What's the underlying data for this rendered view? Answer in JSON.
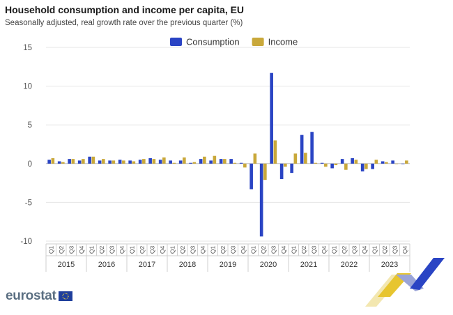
{
  "chart_data": {
    "type": "bar",
    "title": "Household consumption and income per capita, EU",
    "subtitle": "Seasonally adjusted, real growth rate over the previous quarter (%)",
    "ylim": [
      -10,
      15
    ],
    "yticks": [
      15,
      10,
      5,
      0,
      -5,
      -10
    ],
    "quarters": [
      "Q1",
      "Q2",
      "Q3",
      "Q4"
    ],
    "years": [
      "2015",
      "2016",
      "2017",
      "2018",
      "2019",
      "2020",
      "2021",
      "2022",
      "2023"
    ],
    "legend_position": "top-center",
    "series": [
      {
        "name": "Consumption",
        "color": "#2a44c4",
        "values": [
          0.5,
          0.3,
          0.6,
          0.4,
          0.9,
          0.4,
          0.4,
          0.5,
          0.4,
          0.5,
          0.7,
          0.5,
          0.4,
          0.4,
          0.1,
          0.6,
          0.4,
          0.6,
          0.6,
          0.1,
          -3.3,
          -9.4,
          11.7,
          -2.0,
          -1.2,
          3.7,
          4.1,
          0.1,
          -0.6,
          0.6,
          0.7,
          -1.0,
          -0.7,
          0.3,
          0.4,
          0.0
        ]
      },
      {
        "name": "Income",
        "color": "#c9a83a",
        "values": [
          0.7,
          0.2,
          0.6,
          0.6,
          0.9,
          0.6,
          0.4,
          0.4,
          0.3,
          0.6,
          0.6,
          0.8,
          0.1,
          0.8,
          0.2,
          0.9,
          1.0,
          0.6,
          0.1,
          -0.5,
          1.3,
          -2.1,
          3.0,
          -0.4,
          1.3,
          1.4,
          0.1,
          -0.4,
          -0.2,
          -0.8,
          0.5,
          -0.7,
          0.5,
          0.2,
          0.0,
          0.4
        ]
      }
    ]
  },
  "branding": {
    "logo_text": "eurostat"
  }
}
